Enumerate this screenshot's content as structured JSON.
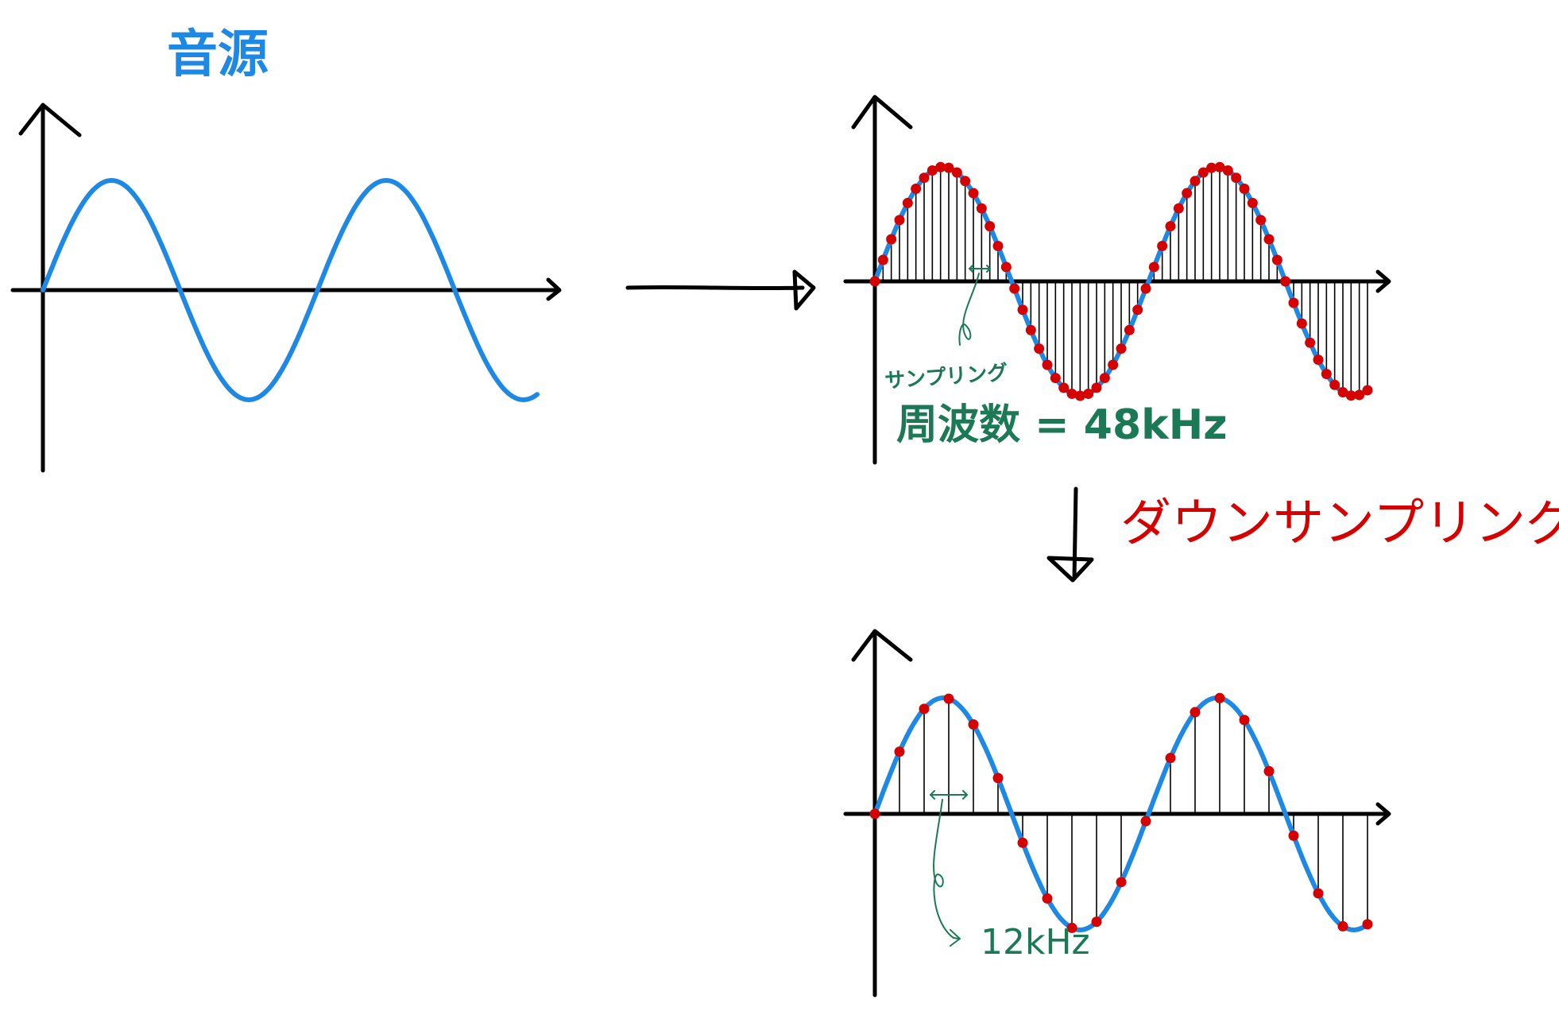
{
  "labels": {
    "source": "音源",
    "sampling_small": "サンプリング",
    "sampling_freq": "周波数 = 48kHz",
    "downsampling": "ダウンサンプリング",
    "down_freq": "12kHz"
  },
  "panels": {
    "source": {
      "cycles": 1.8
    },
    "sampled": {
      "cycles": 1.8,
      "sample_rate": "48kHz"
    },
    "down": {
      "cycles": 1.8,
      "sample_rate": "12kHz"
    }
  },
  "colors": {
    "wave": "#1e88e5",
    "sample_point": "#d50000",
    "annotation": "#1b7a55",
    "downsampling_label": "#d50000"
  }
}
